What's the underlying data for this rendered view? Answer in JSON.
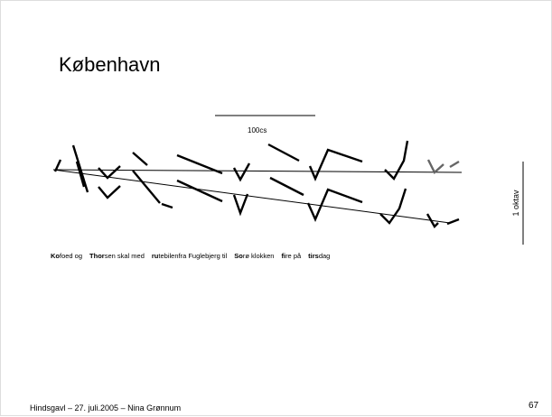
{
  "title": "København",
  "time_scale_label": "100cs",
  "pitch_scale_label": "1 oktav",
  "sentence": [
    {
      "stressed": "Ko",
      "rest": "foed og"
    },
    {
      "stressed": "Thor",
      "rest": "sen skal med"
    },
    {
      "stressed": "ru",
      "rest": "tebilenfra Fuglebjerg til"
    },
    {
      "stressed": "So",
      "rest": "rø klokken"
    },
    {
      "stressed": "fi",
      "rest": "re på"
    },
    {
      "stressed": "tirs",
      "rest": "dag"
    }
  ],
  "footer": "Hindsgavl – 27. juli.2005 – Nina Grønnum",
  "page_number": "67"
}
